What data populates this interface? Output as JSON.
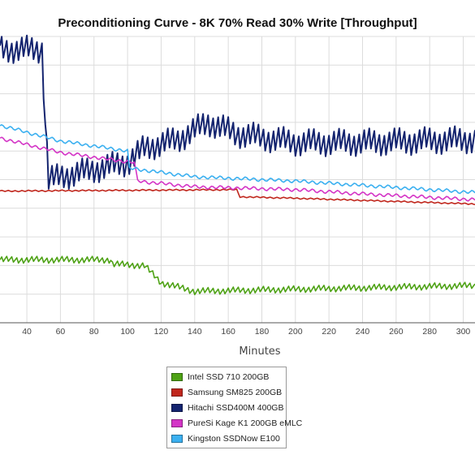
{
  "chart_data": {
    "type": "line",
    "title": "Preconditioning Curve - 8K 70% Read 30% Write [Throughput]",
    "xlabel": "Minutes",
    "ylabel": "",
    "xlim": [
      24,
      307
    ],
    "ylim": [
      0,
      10
    ],
    "x_ticks": [
      40,
      60,
      80,
      100,
      120,
      140,
      160,
      180,
      200,
      220,
      240,
      260,
      280,
      300
    ],
    "y_gridlines": [
      1,
      2,
      3,
      4,
      5,
      6,
      7,
      8,
      9,
      10
    ],
    "grid": true,
    "legend_position": "bottom",
    "series": [
      {
        "name": "Intel SSD 710 200GB",
        "color": "#4ea215",
        "points": [
          [
            24,
            2.2
          ],
          [
            90,
            2.2
          ],
          [
            91,
            2.05
          ],
          [
            110,
            2.0
          ],
          [
            120,
            1.4
          ],
          [
            140,
            1.1
          ],
          [
            307,
            1.3
          ]
        ],
        "noise": 0.1,
        "period": 3
      },
      {
        "name": "Samsung SM825 200GB",
        "color": "#c0261c",
        "points": [
          [
            24,
            4.6
          ],
          [
            165,
            4.65
          ],
          [
            167,
            4.4
          ],
          [
            200,
            4.35
          ],
          [
            307,
            4.15
          ]
        ],
        "noise": 0.02,
        "period": 4
      },
      {
        "name": "Hitachi SSD400M 400GB",
        "color": "#14246f",
        "points": [
          [
            24,
            9.55
          ],
          [
            49,
            9.55
          ],
          [
            51,
            7.0
          ],
          [
            53,
            5.0
          ],
          [
            60,
            5.1
          ],
          [
            100,
            5.6
          ],
          [
            110,
            6.1
          ],
          [
            130,
            6.4
          ],
          [
            148,
            7.0
          ],
          [
            165,
            6.6
          ],
          [
            200,
            6.3
          ],
          [
            240,
            6.3
          ],
          [
            307,
            6.4
          ]
        ],
        "noise": 0.4,
        "period": 3
      },
      {
        "name": "PureSi Kage K1 200GB eMLC",
        "color": "#d435c6",
        "points": [
          [
            24,
            6.45
          ],
          [
            60,
            5.95
          ],
          [
            90,
            5.7
          ],
          [
            104,
            5.6
          ],
          [
            106,
            4.95
          ],
          [
            140,
            4.75
          ],
          [
            200,
            4.65
          ],
          [
            240,
            4.5
          ],
          [
            307,
            4.3
          ]
        ],
        "noise": 0.05,
        "period": 5
      },
      {
        "name": "Kingston SSDNow E100",
        "color": "#3bb0f0",
        "points": [
          [
            24,
            6.9
          ],
          [
            60,
            6.35
          ],
          [
            100,
            6.0
          ],
          [
            101,
            5.4
          ],
          [
            140,
            5.1
          ],
          [
            200,
            4.95
          ],
          [
            307,
            4.55
          ]
        ],
        "noise": 0.05,
        "period": 5
      }
    ]
  }
}
